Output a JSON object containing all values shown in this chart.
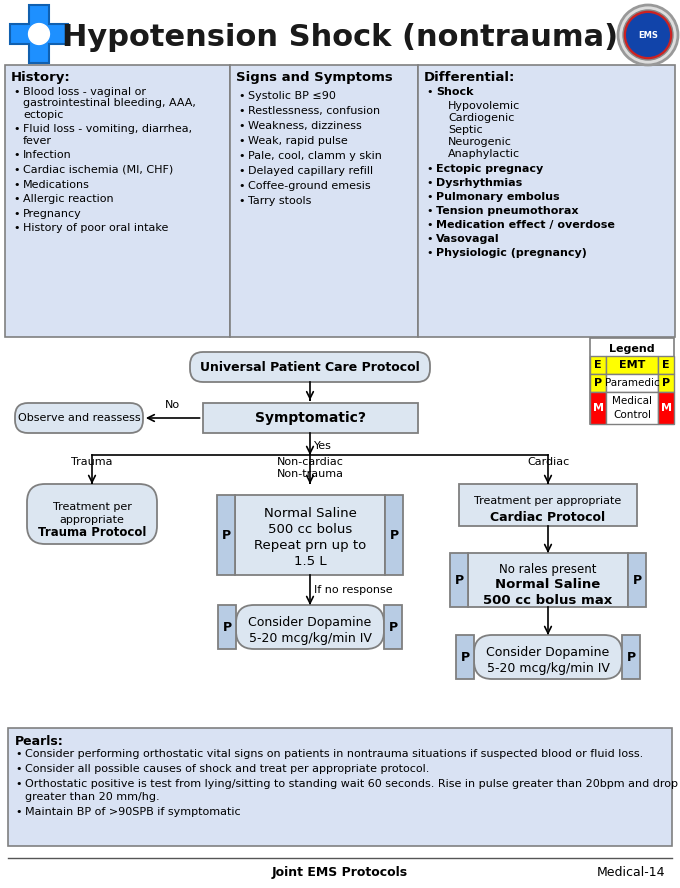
{
  "title": "Hypotension Shock (nontrauma)",
  "bg_color": "#ffffff",
  "table_bg": "#d9e2f3",
  "table_border": "#808080",
  "history_title": "History:",
  "history_items": [
    [
      "Blood loss - vaginal or\ngastrointestinal bleeding, AAA,\nectopic",
      3
    ],
    [
      "Fluid loss - vomiting, diarrhea,\nfever",
      2
    ],
    [
      "Infection",
      1
    ],
    [
      "Cardiac ischemia (MI, CHF)",
      1
    ],
    [
      "Medications",
      1
    ],
    [
      "Allergic reaction",
      1
    ],
    [
      "Pregnancy",
      1
    ],
    [
      "History of poor oral intake",
      1
    ]
  ],
  "signs_title": "Signs and Symptoms",
  "signs_items": [
    "Systolic BP ≤90",
    "Restlessness, confusion",
    "Weakness, dizziness",
    "Weak, rapid pulse",
    "Pale, cool, clamm y skin",
    "Delayed capillary refill",
    "Coffee-ground emesis",
    "Tarry stools"
  ],
  "diff_title": "Differential:",
  "diff_sub": [
    "Hypovolemic",
    "Cardiogenic",
    "Septic",
    "Neurogenic",
    "Anaphylactic"
  ],
  "diff_items2": [
    "Ectopic pregnacy",
    "Dysrhythmias",
    "Pulmonary embolus",
    "Tension pneumothorax",
    "Medication effect / overdose",
    "Vasovagal",
    "Physiologic (pregnancy)"
  ],
  "pearls_title": "Pearls:",
  "pearls_items": [
    "Consider performing orthostatic vital signs on patients in nontrauma situations if suspected blood or fluid loss.",
    "Consider all possible causes of shock and treat per appropriate protocol.",
    "Orthostatic positive is test from lying/sitting to standing wait 60 seconds. Rise in pulse greater than 20bpm and drop in BP\ngreater than 20 mm/hg.",
    "Maintain BP of >90SPB if symptomatic"
  ],
  "footer_left": "Joint EMS Protocols",
  "footer_right": "Medical-14",
  "emt_yellow": "#ffff00",
  "med_red": "#ff0000",
  "p_blue": "#b8cce4",
  "flow_bg": "#dce6f1",
  "flow_border": "#7f7f7f"
}
